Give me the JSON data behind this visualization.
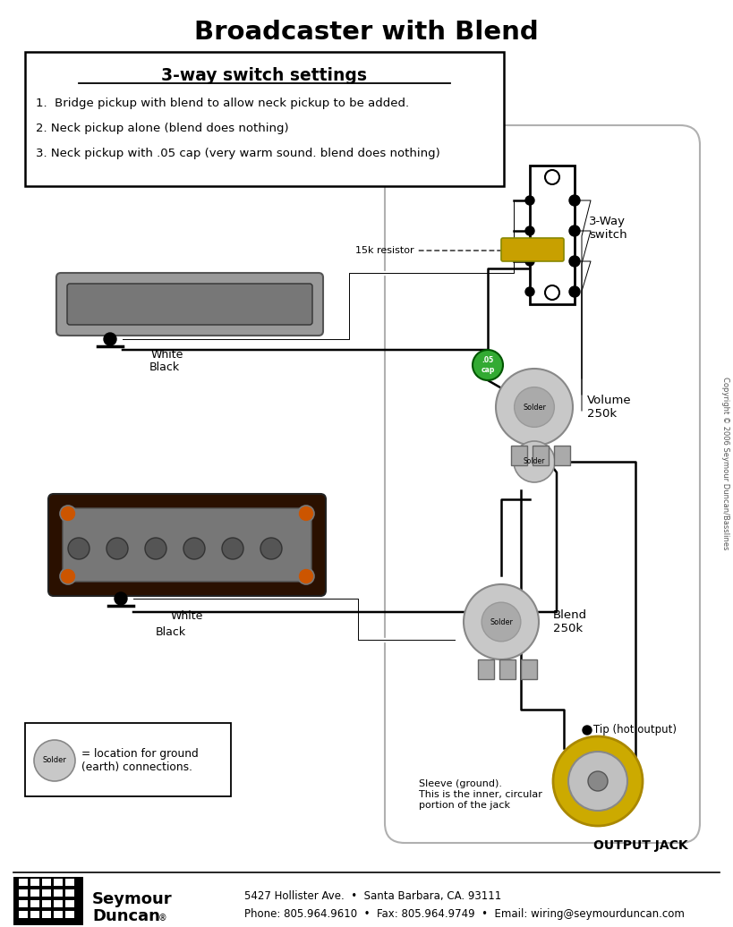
{
  "title": "Broadcaster with Blend",
  "switch_title": "3-way switch settings",
  "switch_items": [
    "1.  Bridge pickup with blend to allow neck pickup to be added.",
    "2. Neck pickup alone (blend does nothing)",
    "3. Neck pickup with .05 cap (very warm sound. blend does nothing)"
  ],
  "label_3way": "3-Way\nswitch",
  "label_volume": "Volume\n250k",
  "label_blend": "Blend\n250k",
  "label_output": "OUTPUT JACK",
  "label_tip": "Tip (hot output)",
  "label_sleeve": "Sleeve (ground).\nThis is the inner, circular\nportion of the jack",
  "label_resistor": "15k resistor",
  "label_white": "White",
  "label_black": "Black",
  "label_cap": ".05\ncap",
  "label_solder": "Solder",
  "label_ground_legend": "= location for ground\n(earth) connections.",
  "label_copyright": "Copyright © 2006 Seymour Duncan/Basslines",
  "footer_address": "5427 Hollister Ave.  •  Santa Barbara, CA. 93111",
  "footer_phone": "Phone: 805.964.9610  •  Fax: 805.964.9749  •  Email: wiring@seymourduncan.com",
  "color_bg": "white",
  "color_body": "#aaaaaa",
  "color_pot": "#c8c8c8",
  "color_jack_gold": "#ccaa00",
  "color_cap": "#33aa33",
  "color_switch_blade": "#c8a000",
  "color_pickup_neck_outer": "#999999",
  "color_pickup_neck_inner": "#777777",
  "color_pickup_bridge_outer": "#2a1000",
  "color_pickup_bridge_inner": "#777777",
  "color_screw": "#cc5500",
  "color_lug": "#aaaaaa"
}
